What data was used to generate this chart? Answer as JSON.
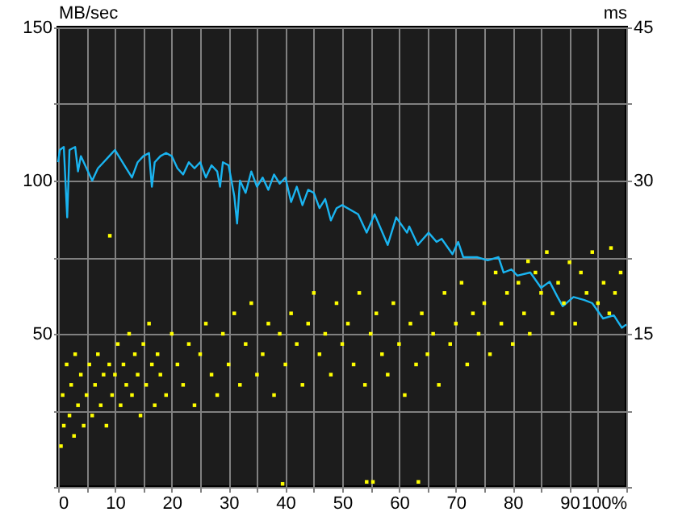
{
  "chart_data": {
    "type": "line",
    "ylabel": "MB/sec",
    "y2label": "ms",
    "xlim": [
      0,
      100
    ],
    "ylim": [
      0,
      150
    ],
    "y2lim": [
      0,
      45
    ],
    "xticks": [
      0,
      {
        "value": 5,
        "label": null
      },
      10,
      {
        "value": 15,
        "label": null
      },
      20,
      {
        "value": 25,
        "label": null
      },
      30,
      {
        "value": 35,
        "label": null
      },
      40,
      {
        "value": 45,
        "label": null
      },
      50,
      {
        "value": 55,
        "label": null
      },
      60,
      {
        "value": 65,
        "label": null
      },
      70,
      {
        "value": 75,
        "label": null
      },
      80,
      {
        "value": 85,
        "label": null
      },
      90,
      {
        "value": 95,
        "label": null
      },
      {
        "value": 100,
        "label": "100%"
      }
    ],
    "yticks": [
      {
        "value": 0,
        "label": null
      },
      {
        "value": 25,
        "label": null
      },
      50,
      {
        "value": 75,
        "label": null
      },
      100,
      {
        "value": 125,
        "label": null
      },
      150
    ],
    "y2ticks": [
      {
        "value": 0,
        "label": null
      },
      {
        "value": 7.5,
        "label": null
      },
      15,
      {
        "value": 22.5,
        "label": null
      },
      30,
      {
        "value": 37.5,
        "label": null
      },
      45
    ],
    "grid": true,
    "series": [
      {
        "color": "#1ab4f0",
        "marker": "none",
        "x": [
          0,
          0.3,
          1,
          1.6,
          2,
          3,
          3.5,
          4,
          5,
          6,
          7,
          8,
          9,
          10,
          11,
          12,
          13,
          14,
          15,
          16,
          16.5,
          17,
          18,
          19,
          20,
          21,
          22,
          23,
          24,
          25,
          26,
          27,
          28,
          28.5,
          29,
          30,
          31,
          31.5,
          32,
          33,
          34,
          35,
          36,
          37,
          38,
          39,
          40,
          41,
          42,
          43,
          44,
          45,
          46,
          47,
          48,
          49,
          50,
          52.8,
          54.3,
          55.7,
          58,
          59.5,
          61.4,
          61.8,
          63.3,
          65.2,
          66.6,
          67.5,
          69.4,
          70.4,
          71.3,
          73.7,
          75.6,
          77.5,
          78.4,
          79.8,
          80.8,
          83.1,
          85,
          86.5,
          87.9,
          88.8,
          90.7,
          92.6,
          94,
          95.9,
          97.8,
          99.2,
          100
        ],
        "values": [
          106,
          110,
          111,
          88,
          110,
          111,
          103,
          108,
          104,
          100,
          104,
          106,
          108,
          110,
          107,
          104,
          101,
          106,
          108,
          109,
          98,
          106,
          108,
          109,
          108,
          104,
          102,
          106,
          104,
          106,
          101,
          105,
          103,
          98,
          106,
          105,
          95,
          86,
          100,
          96,
          103,
          98,
          101,
          97,
          102,
          99,
          101,
          93,
          98,
          92,
          97,
          96,
          91,
          94,
          87,
          91,
          92,
          89,
          83,
          89,
          79,
          88,
          83,
          85,
          79,
          83,
          80,
          81,
          76,
          80,
          75,
          75,
          74,
          75,
          70,
          71,
          69,
          70,
          65,
          67,
          62,
          59,
          62,
          61,
          60,
          55,
          56,
          52,
          53
        ]
      },
      {
        "type": "scatter",
        "axis": "y2",
        "color": "#ffff00",
        "marker": "square",
        "x": [
          0.5,
          0.8,
          1,
          1.5,
          2,
          2.3,
          2.8,
          3,
          3.5,
          4,
          4.5,
          5,
          5.5,
          6,
          6.5,
          7,
          7.5,
          8,
          8.5,
          9,
          9.1,
          9.5,
          10,
          10.5,
          11,
          11.5,
          12,
          12.5,
          13,
          13.5,
          14,
          14.5,
          15,
          15.5,
          16,
          16.5,
          17,
          17.5,
          18,
          19,
          20,
          21,
          22,
          23,
          24,
          25,
          26,
          27,
          28,
          29,
          30,
          31,
          32,
          33,
          34,
          35,
          36,
          37,
          38,
          39,
          39.5,
          40,
          41,
          42,
          43,
          44,
          45,
          46,
          47,
          48,
          49,
          50,
          51,
          52,
          53,
          54,
          54.3,
          55,
          55.4,
          56,
          57,
          58,
          59,
          60,
          61,
          62,
          63,
          63.4,
          64,
          65,
          66,
          67,
          68,
          69,
          70,
          71,
          72,
          73,
          74,
          75,
          76,
          77,
          78,
          79,
          80,
          81,
          82,
          82.7,
          83,
          84,
          85,
          86,
          87,
          88,
          89,
          90,
          91,
          92,
          93,
          94,
          95,
          96,
          97,
          97.3,
          98,
          99
        ],
        "values": [
          4,
          9,
          6,
          12,
          7,
          10,
          5,
          13,
          8,
          11,
          6,
          9,
          12,
          7,
          10,
          13,
          8,
          11,
          6,
          12,
          24.6,
          9,
          11,
          14,
          8,
          12,
          10,
          15,
          9,
          13,
          11,
          7,
          14,
          10,
          16,
          12,
          8,
          13,
          11,
          9,
          15,
          12,
          10,
          14,
          8,
          13,
          16,
          11,
          9,
          15,
          12,
          17,
          10,
          14,
          18,
          11,
          13,
          16,
          9,
          15,
          0.3,
          12,
          17,
          14,
          10,
          16,
          19,
          13,
          15,
          11,
          18,
          14,
          16,
          12,
          19,
          10,
          0.5,
          15,
          0.5,
          17,
          13,
          11,
          18,
          14,
          9,
          16,
          12,
          0.5,
          17,
          13,
          15,
          10,
          19,
          14,
          16,
          20,
          12,
          17,
          15,
          18,
          13,
          21,
          16,
          19,
          14,
          20,
          17,
          22.1,
          15,
          21,
          19,
          23,
          17,
          20,
          18,
          22,
          16,
          21,
          19,
          23,
          18,
          20,
          17,
          23.4,
          19,
          21
        ]
      }
    ]
  }
}
